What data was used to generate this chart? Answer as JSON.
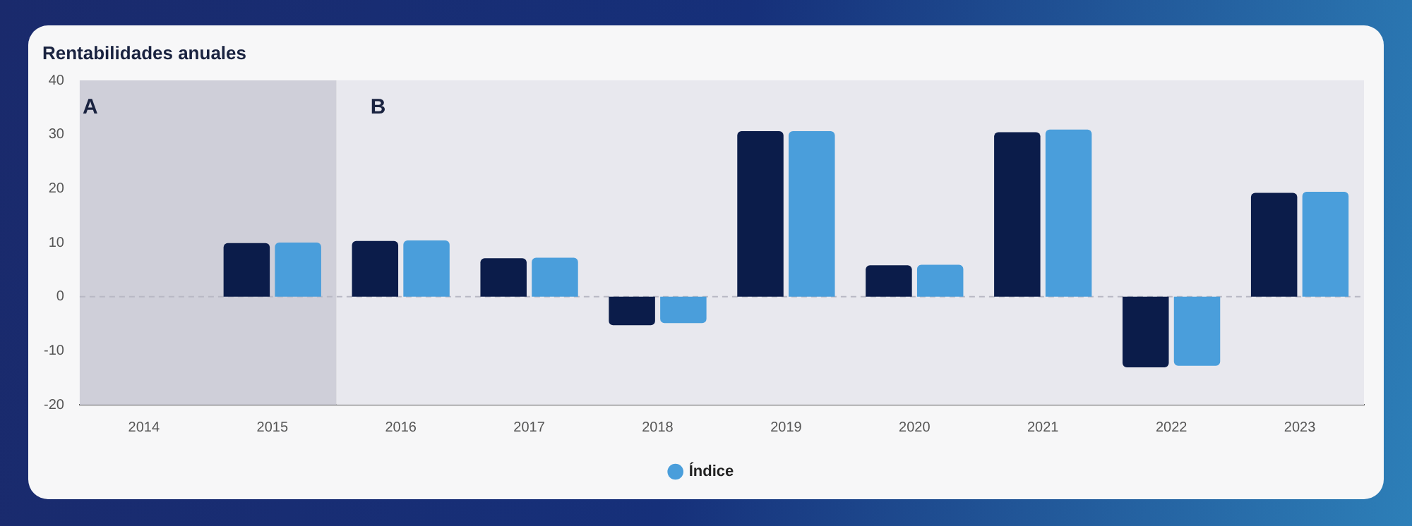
{
  "chart_data": {
    "type": "bar",
    "title": "Rentabilidades anuales",
    "categories": [
      "2014",
      "2015",
      "2016",
      "2017",
      "2018",
      "2019",
      "2020",
      "2021",
      "2022",
      "2023"
    ],
    "series": [
      {
        "color": "#0b1c4a",
        "values": [
          null,
          9.9,
          10.3,
          7.1,
          -5.3,
          30.6,
          5.8,
          30.4,
          -13.1,
          19.2
        ]
      },
      {
        "name": "Índice",
        "color": "#4a9edb",
        "values": [
          null,
          10.0,
          10.4,
          7.2,
          -4.9,
          30.6,
          5.9,
          30.9,
          -12.8,
          19.4
        ]
      }
    ],
    "ylim": [
      -20,
      40
    ],
    "yticks": [
      -20,
      -10,
      0,
      10,
      20,
      30,
      40
    ],
    "grid": false,
    "legend": "bottom",
    "ref_lines": [
      {
        "axis": "y",
        "value": 0,
        "color": "#b8b8c4",
        "line_style": "dashed"
      }
    ],
    "bands": [
      {
        "axis": "x",
        "from": "2014",
        "to": "2015",
        "label": "A",
        "color": "#cfcfd9"
      },
      {
        "axis": "x",
        "from": "2016",
        "to": "2023",
        "label": "B",
        "color": "#e8e8ee"
      }
    ]
  }
}
